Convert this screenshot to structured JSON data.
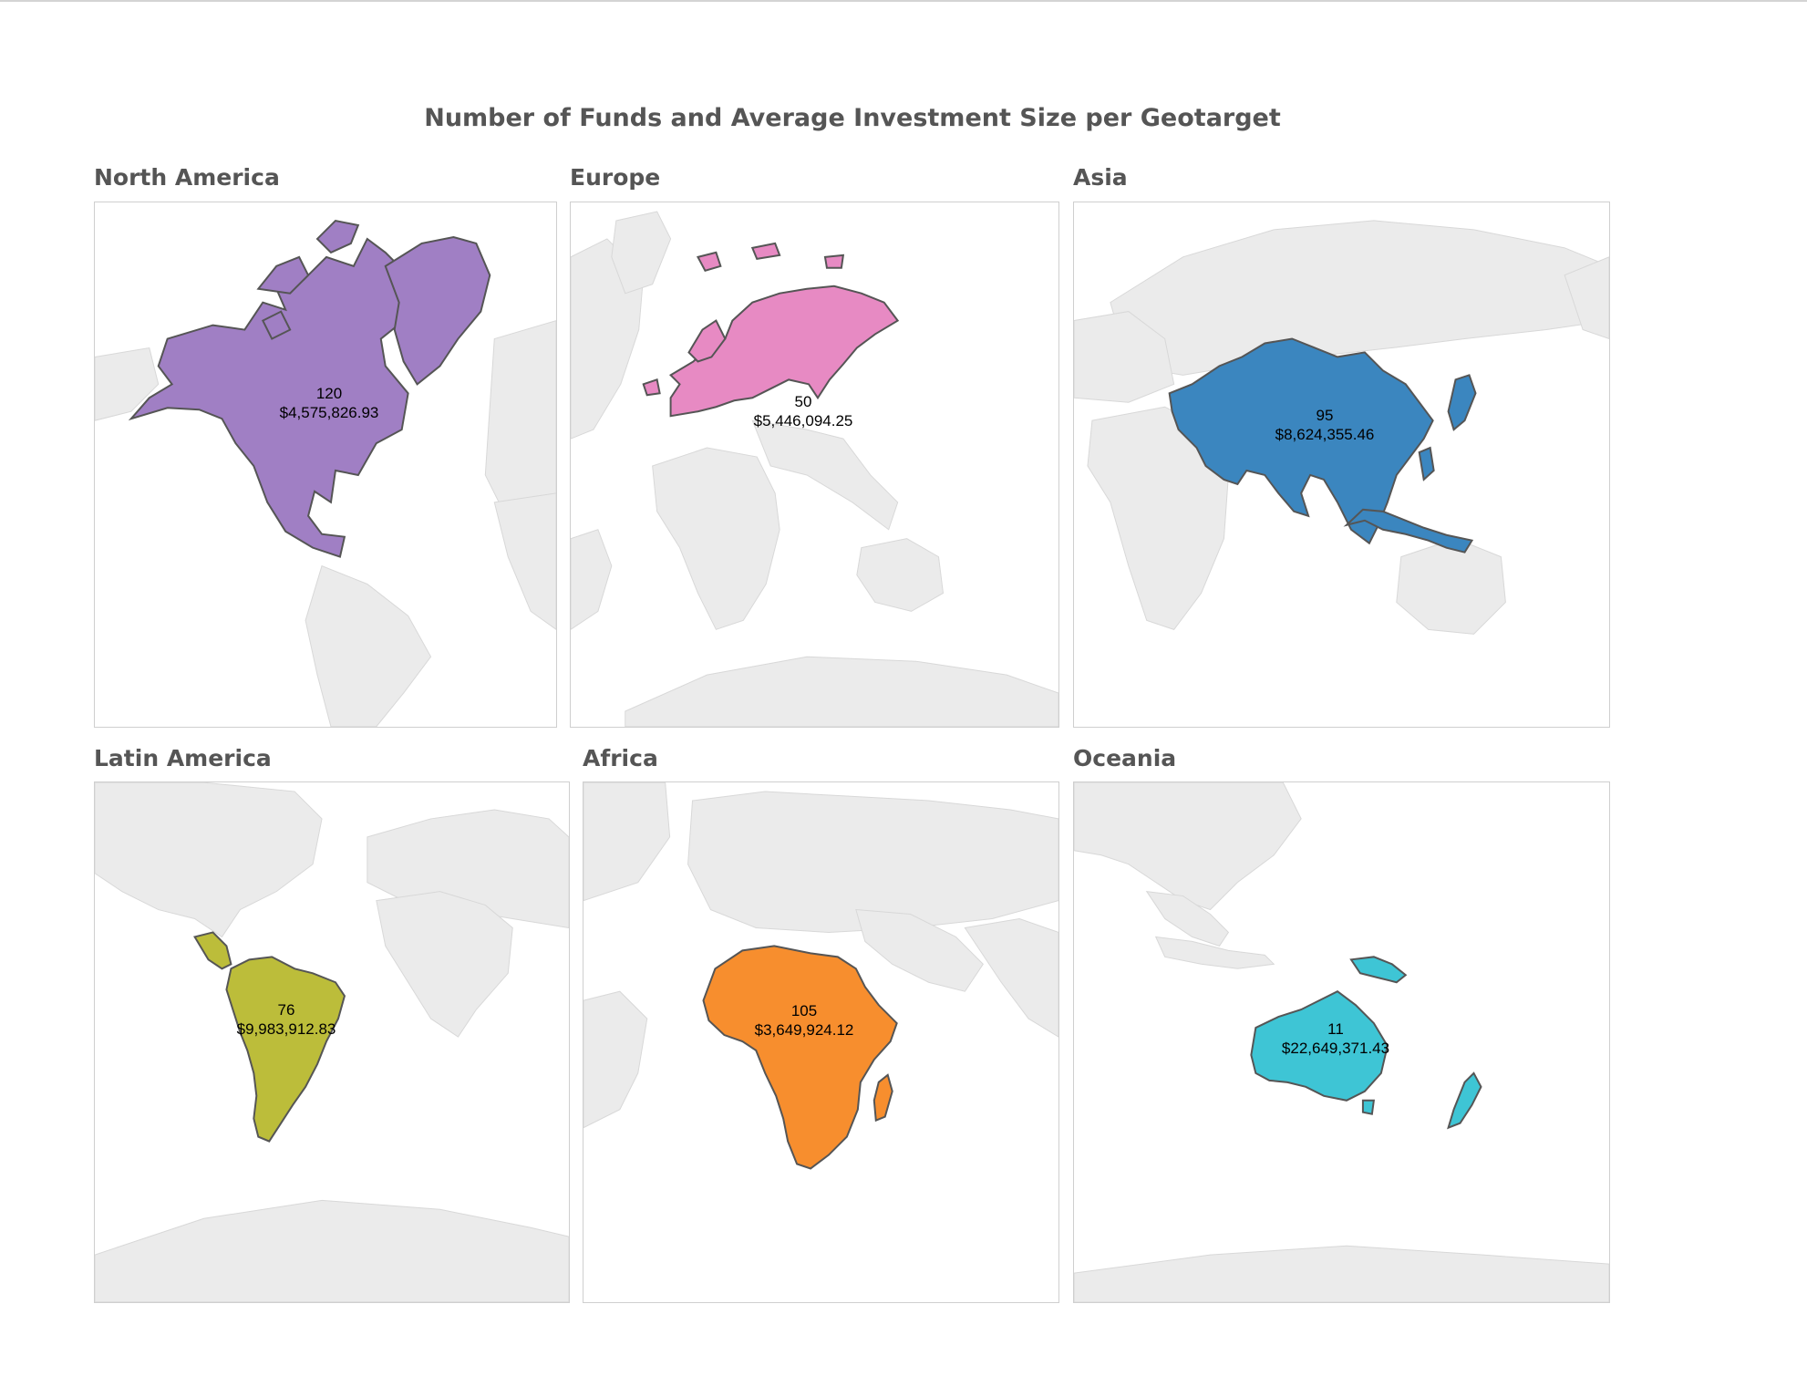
{
  "title": "Number of Funds and Average Investment Size per Geotarget",
  "panels": [
    {
      "name": "North America",
      "funds": "120",
      "avg_investment": "$4,575,826.93",
      "color": "#a07fc4"
    },
    {
      "name": "Europe",
      "funds": "50",
      "avg_investment": "$5,446,094.25",
      "color": "#e78ac3"
    },
    {
      "name": "Asia",
      "funds": "95",
      "avg_investment": "$8,624,355.46",
      "color": "#3b86bf"
    },
    {
      "name": "Latin America",
      "funds": "76",
      "avg_investment": "$9,983,912.83",
      "color": "#bcbd3a"
    },
    {
      "name": "Africa",
      "funds": "105",
      "avg_investment": "$3,649,924.12",
      "color": "#f78e2e"
    },
    {
      "name": "Oceania",
      "funds": "11",
      "avg_investment": "$22,649,371.43",
      "color": "#3ec5d5"
    }
  ]
}
